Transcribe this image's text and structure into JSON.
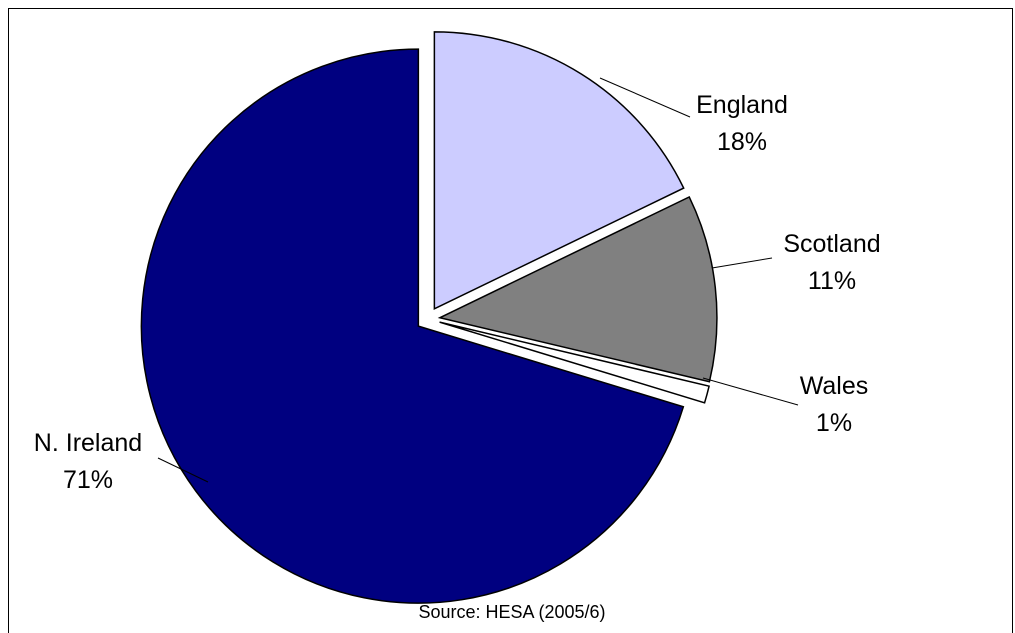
{
  "chart_data": {
    "type": "pie",
    "title": "",
    "source": "Source: HESA (2005/6)",
    "slices": [
      {
        "name": "England",
        "value": 18,
        "label": "18%",
        "color": "#ccccff"
      },
      {
        "name": "Scotland",
        "value": 11,
        "label": "11%",
        "color": "#808080"
      },
      {
        "name": "Wales",
        "value": 1,
        "label": "1%",
        "color": "#ffffff"
      },
      {
        "name": "N. Ireland",
        "value": 71,
        "label": "71%",
        "color": "#000080"
      }
    ],
    "exploded": true,
    "legend": "none"
  }
}
